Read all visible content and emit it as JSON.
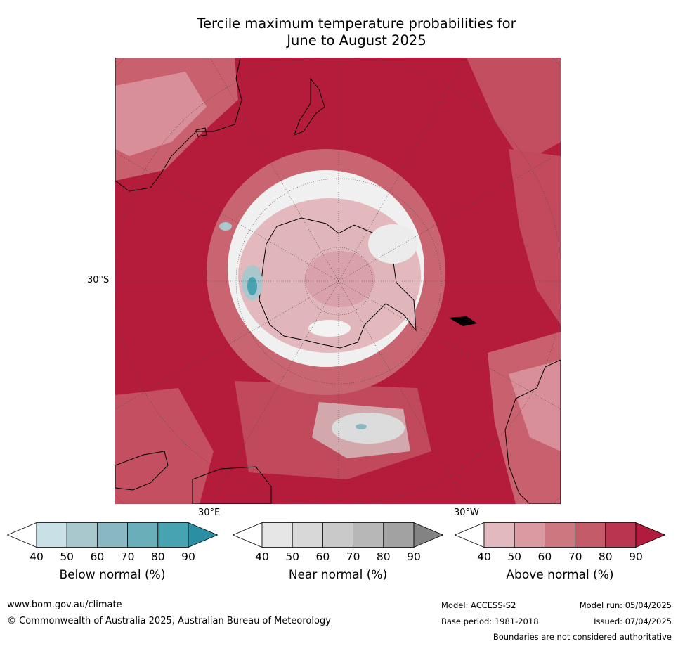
{
  "title_line1": "Tercile maximum temperature probabilities for",
  "title_line2": "June to August 2025",
  "axis_labels": {
    "lat": "30°S",
    "lon_east": "30°E",
    "lon_west": "30°W"
  },
  "colorbars": [
    {
      "label": "Below normal (%)",
      "ticks": [
        "40",
        "50",
        "60",
        "70",
        "80",
        "90"
      ],
      "colors": [
        "#ffffff",
        "#c9e1e6",
        "#a8c8cd",
        "#8ab8c2",
        "#6aaeb9",
        "#47a2b1",
        "#2b8fa3"
      ]
    },
    {
      "label": "Near normal (%)",
      "ticks": [
        "40",
        "50",
        "60",
        "70",
        "80",
        "90"
      ],
      "colors": [
        "#ffffff",
        "#e6e6e6",
        "#d8d8d8",
        "#c9c9c9",
        "#b7b7b7",
        "#a2a2a2",
        "#838383"
      ]
    },
    {
      "label": "Above normal (%)",
      "ticks": [
        "40",
        "50",
        "60",
        "70",
        "80",
        "90"
      ],
      "colors": [
        "#ffffff",
        "#e2b9be",
        "#d99aa2",
        "#cd7781",
        "#c45b69",
        "#ba3550",
        "#b11c3e"
      ]
    }
  ],
  "footer": {
    "website": "www.bom.gov.au/climate",
    "copyright": "© Commonwealth of Australia 2025, Australian Bureau of Meteorology",
    "model": "Model: ACCESS-S2",
    "base_period": "Base period: 1981-2018",
    "model_run": "Model run: 05/04/2025",
    "issued": "Issued: 07/04/2025",
    "disclaimer": "Boundaries are not considered authoritative"
  }
}
